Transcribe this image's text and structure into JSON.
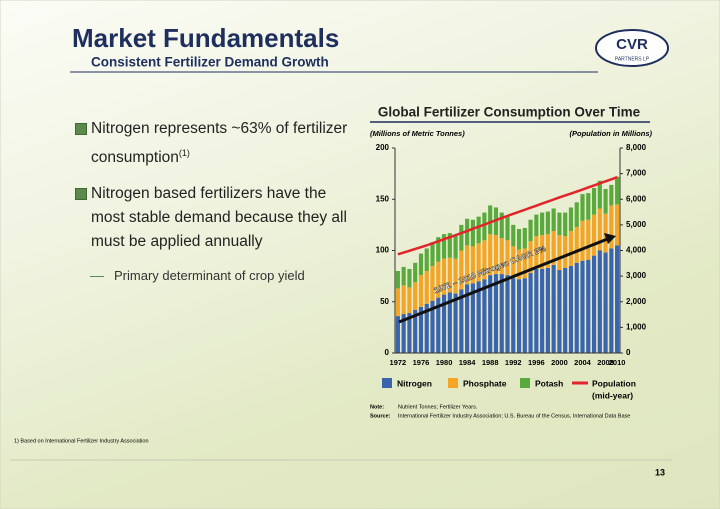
{
  "slide": {
    "title": "Market Fundamentals",
    "subtitle": "Consistent Fertilizer Demand Growth",
    "logo": {
      "name": "CVR",
      "sub": "PARTNERS LP"
    },
    "bullets": [
      {
        "text": "Nitrogen represents ~63% of fertilizer consumption",
        "sup": "(1)"
      },
      {
        "text": "Nitrogen based fertilizers have the most stable demand because they all must be applied annually"
      }
    ],
    "sub_bullet": "Primary determinant of crop yield",
    "footnote": "1)  Based on International Fertilizer Industry Association",
    "page_number": "13"
  },
  "chart_data": {
    "type": "bar",
    "title": "Global Fertilizer Consumption Over Time",
    "ylabel": "(Millions of Metric Tonnes)",
    "y2label": "(Population in Millions)",
    "annotation": "1972 – 2010 Nitrogen CAGR 3%",
    "categories": [
      "1972",
      null,
      null,
      null,
      "1976",
      null,
      null,
      null,
      "1980",
      null,
      null,
      null,
      "1984",
      null,
      null,
      null,
      "1988",
      null,
      null,
      null,
      "1992",
      null,
      null,
      null,
      "1996",
      null,
      null,
      null,
      "2000",
      null,
      null,
      null,
      "2004",
      null,
      null,
      null,
      "2008",
      null,
      "2010"
    ],
    "series": [
      {
        "name": "Nitrogen",
        "color": "#3a64ae",
        "values": [
          36,
          38,
          39,
          42,
          45,
          48,
          51,
          54,
          57,
          59,
          58,
          62,
          67,
          68,
          70,
          72,
          76,
          77,
          77,
          76,
          73,
          72,
          73,
          78,
          82,
          82,
          83,
          86,
          81,
          83,
          85,
          88,
          90,
          91,
          95,
          100,
          98,
          102,
          105
        ]
      },
      {
        "name": "Phosphate",
        "color": "#f4a525",
        "values": [
          27,
          28,
          25,
          27,
          31,
          32,
          34,
          35,
          35,
          34,
          34,
          38,
          38,
          36,
          37,
          38,
          40,
          38,
          35,
          34,
          31,
          29,
          29,
          31,
          32,
          33,
          33,
          33,
          34,
          31,
          34,
          35,
          39,
          39,
          40,
          41,
          38,
          42,
          40
        ]
      },
      {
        "name": "Potash",
        "color": "#5aa93c",
        "values": [
          17,
          18,
          18,
          19,
          21,
          22,
          23,
          24,
          24,
          24,
          23,
          25,
          26,
          26,
          26,
          27,
          28,
          27,
          25,
          23,
          21,
          20,
          20,
          21,
          21,
          22,
          22,
          22,
          22,
          23,
          23,
          24,
          26,
          26,
          26,
          27,
          24,
          20,
          27
        ]
      },
      {
        "name": "Population",
        "color": "#e3232a",
        "axis": "y2",
        "type": "line",
        "values": [
          3850,
          3920,
          3990,
          4060,
          4130,
          4200,
          4280,
          4360,
          4440,
          4520,
          4600,
          4680,
          4760,
          4850,
          4930,
          5010,
          5100,
          5180,
          5270,
          5350,
          5430,
          5510,
          5590,
          5670,
          5750,
          5830,
          5910,
          5990,
          6070,
          6150,
          6220,
          6300,
          6380,
          6460,
          6540,
          6620,
          6700,
          6780,
          6860
        ]
      }
    ],
    "legend_note": "(mid-year)",
    "stacked": true,
    "ylim": [
      0,
      200
    ],
    "yticks": [
      0,
      50,
      100,
      150,
      200
    ],
    "y2lim": [
      0,
      8000
    ],
    "y2ticks": [
      0,
      {
        "value": 1000,
        "label": "1,000"
      },
      {
        "value": 2000,
        "label": "2,000"
      },
      {
        "value": 3000,
        "label": "3,000"
      },
      {
        "value": 4000,
        "label": "4,000"
      },
      {
        "value": 5000,
        "label": "5,000"
      },
      {
        "value": 6000,
        "label": "6,000"
      },
      {
        "value": 7000,
        "label": "7,000"
      },
      {
        "value": 8000,
        "label": "8,000"
      }
    ],
    "notes": [
      {
        "label": "Note:",
        "text": "Nutrient Tonnes; Fertilizer Years."
      },
      {
        "label": "Source:",
        "text": "International Fertilizer Industry Association; U.S. Bureau of the Census, International Data Base"
      }
    ]
  }
}
